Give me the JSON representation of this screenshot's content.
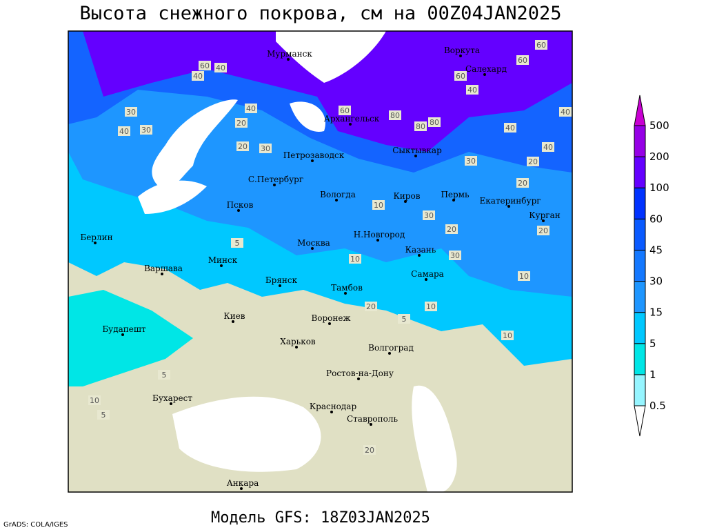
{
  "title": "Высота снежного покрова, см на 00Z04JAN2025",
  "footer": "Модель GFS: 18Z03JAN2025",
  "credit": "GrADS: COLA/IGES",
  "colorbar": {
    "levels": [
      0.5,
      1,
      5,
      15,
      30,
      45,
      60,
      100,
      200,
      500
    ],
    "colors": [
      "#ffffff",
      "#96f5ff",
      "#00e6e6",
      "#00c8ff",
      "#1e96ff",
      "#1478ff",
      "#0a5aff",
      "#0032ff",
      "#6400ff",
      "#9600e6",
      "#c800d2"
    ]
  },
  "cities": [
    "Мурманск",
    "Воркута",
    "Салехард",
    "Архангельск",
    "Сыктывкар",
    "Петрозаводск",
    "С.Петербург",
    "Вологда",
    "Киров",
    "Пермь",
    "Екатеринбург",
    "Курган",
    "Псков",
    "Москва",
    "Н.Новгород",
    "Казань",
    "Берлин",
    "Варшава",
    "Минск",
    "Брянск",
    "Тамбов",
    "Самара",
    "Киев",
    "Воронеж",
    "Будапешт",
    "Харьков",
    "Волгоград",
    "Ростов-на-Дону",
    "Бухарест",
    "Краснодар",
    "Ставрополь",
    "Анкара"
  ],
  "contour_labels": [
    60,
    40,
    40,
    60,
    30,
    30,
    40,
    20,
    40,
    20,
    30,
    60,
    80,
    80,
    80,
    40,
    60,
    60,
    40,
    40,
    30,
    20,
    40,
    20,
    10,
    10,
    20,
    30,
    30,
    20,
    10,
    20,
    5,
    10,
    10,
    5,
    5,
    10,
    5,
    20
  ]
}
